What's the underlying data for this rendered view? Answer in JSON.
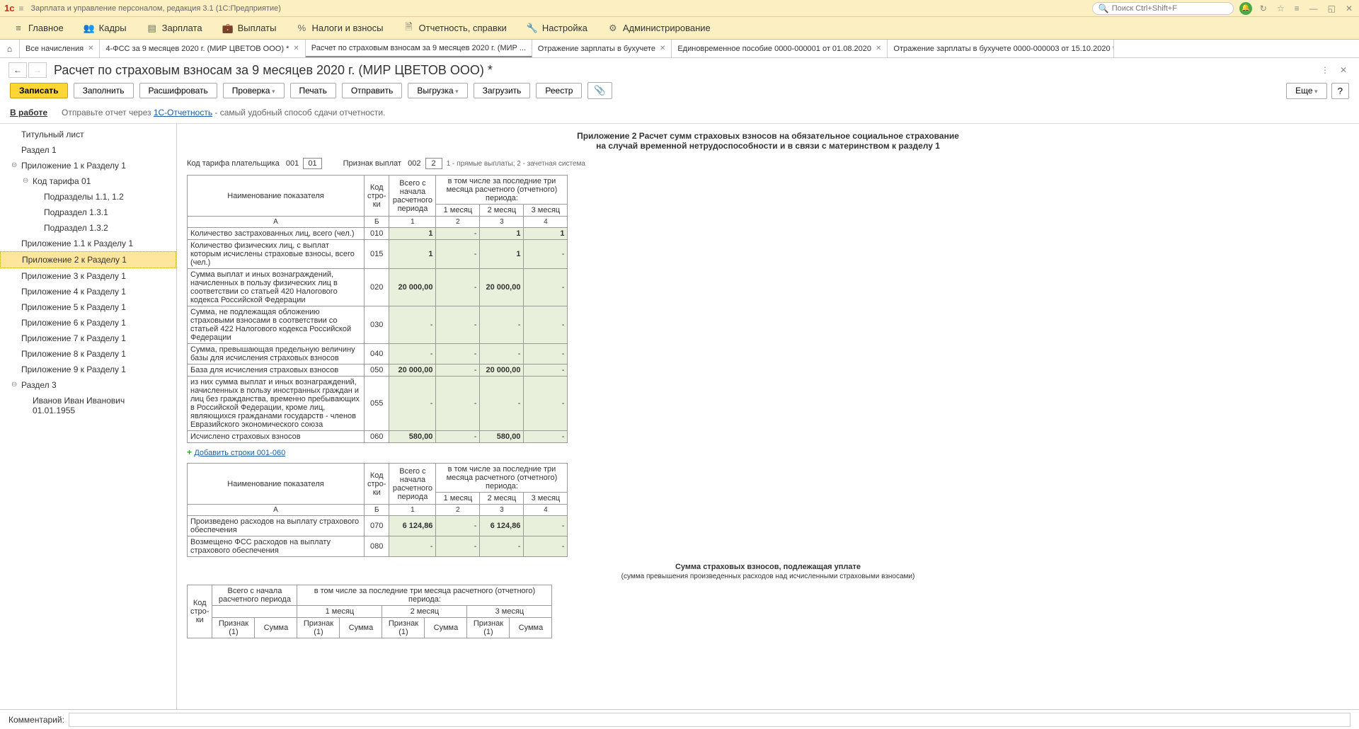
{
  "titlebar": {
    "app": "Зарплата и управление персоналом, редакция 3.1  (1С:Предприятие)",
    "search_placeholder": "Поиск Ctrl+Shift+F"
  },
  "mainmenu": [
    {
      "icon": "≡",
      "label": "Главное"
    },
    {
      "icon": "👥",
      "label": "Кадры"
    },
    {
      "icon": "▤",
      "label": "Зарплата"
    },
    {
      "icon": "💼",
      "label": "Выплаты"
    },
    {
      "icon": "%",
      "label": "Налоги и взносы"
    },
    {
      "icon": "🗎",
      "label": "Отчетность, справки"
    },
    {
      "icon": "🔧",
      "label": "Настройка"
    },
    {
      "icon": "⚙",
      "label": "Администрирование"
    }
  ],
  "tabs": [
    {
      "label": "Все начисления",
      "close": true
    },
    {
      "label": "4-ФСС за 9 месяцев 2020 г. (МИР ЦВЕТОВ ООО) *",
      "close": true
    },
    {
      "label": "Расчет по страховым взносам за 9 месяцев 2020 г. (МИР ...",
      "close": true,
      "active": true
    },
    {
      "label": "Отражение зарплаты в бухучете",
      "close": true
    },
    {
      "label": "Единовременное пособие 0000-000001 от 01.08.2020",
      "close": true
    },
    {
      "label": "Отражение зарплаты в бухучете 0000-000003 от 15.10.2020 *",
      "close": true
    }
  ],
  "page": {
    "title": "Расчет по страховым взносам за 9 месяцев 2020 г. (МИР ЦВЕТОВ ООО) *",
    "status_label": "В работе",
    "status_text": "Отправьте отчет через ",
    "status_link": "1С-Отчетность",
    "status_suffix": " - самый удобный способ сдачи отчетности."
  },
  "toolbar": {
    "save": "Записать",
    "fill": "Заполнить",
    "decode": "Расшифровать",
    "check": "Проверка",
    "print": "Печать",
    "send": "Отправить",
    "export": "Выгрузка",
    "load": "Загрузить",
    "registry": "Реестр",
    "more": "Еще"
  },
  "tree": [
    {
      "label": "Титульный лист",
      "level": 2
    },
    {
      "label": "Раздел 1",
      "level": 2
    },
    {
      "label": "Приложение 1 к Разделу 1",
      "level": 2,
      "toggle": "⊖"
    },
    {
      "label": "Код тарифа 01",
      "level": 3,
      "toggle": "⊖"
    },
    {
      "label": "Подразделы 1.1, 1.2",
      "level": 4
    },
    {
      "label": "Подраздел 1.3.1",
      "level": 4
    },
    {
      "label": "Подраздел 1.3.2",
      "level": 4
    },
    {
      "label": "Приложение 1.1 к Разделу 1",
      "level": 2
    },
    {
      "label": "Приложение 2 к Разделу 1",
      "level": 2,
      "selected": true
    },
    {
      "label": "Приложение 3 к Разделу 1",
      "level": 2
    },
    {
      "label": "Приложение 4 к Разделу 1",
      "level": 2
    },
    {
      "label": "Приложение 5 к Разделу 1",
      "level": 2
    },
    {
      "label": "Приложение 6 к Разделу 1",
      "level": 2
    },
    {
      "label": "Приложение 7 к Разделу 1",
      "level": 2
    },
    {
      "label": "Приложение 8 к Разделу 1",
      "level": 2
    },
    {
      "label": "Приложение 9 к Разделу 1",
      "level": 2
    },
    {
      "label": "Раздел 3",
      "level": 2,
      "toggle": "⊖"
    },
    {
      "label": "Иванов Иван Иванович 01.01.1955",
      "level": 3
    }
  ],
  "form": {
    "title_l1": "Приложение 2 Расчет сумм страховых взносов на обязательное социальное страхование",
    "title_l2": "на случай временной нетрудоспособности и в связи с материнством к разделу 1",
    "tariff_label": "Код тарифа плательщика",
    "tariff_code": "001",
    "tariff_val": "01",
    "sign_label": "Признак выплат",
    "sign_code": "002",
    "sign_val": "2",
    "sign_hint": "1 - прямые выплаты; 2 - зачетная система",
    "headers": {
      "name": "Наименование показателя",
      "code": "Код стро-ки",
      "total": "Всего с начала расчетного периода",
      "last3": "в том числе за последние три месяца расчетного (отчетного) периода:",
      "m1": "1 месяц",
      "m2": "2 месяц",
      "m3": "3 месяц",
      "A": "А",
      "B": "Б",
      "c1": "1",
      "c2": "2",
      "c3": "3",
      "c4": "4"
    },
    "rows1": [
      {
        "name": "Количество застрахованных лиц, всего (чел.)",
        "code": "010",
        "v": [
          "1",
          "-",
          "1",
          "1"
        ]
      },
      {
        "name": "Количество физических лиц, с выплат которым исчислены страховые взносы, всего (чел.)",
        "code": "015",
        "v": [
          "1",
          "-",
          "1",
          "-"
        ]
      },
      {
        "name": "Сумма выплат и иных вознаграждений, начисленных в пользу физических лиц в соответствии со статьей 420 Налогового кодекса Российской Федерации",
        "code": "020",
        "v": [
          "20 000,00",
          "-",
          "20 000,00",
          "-"
        ]
      },
      {
        "name": "Сумма, не подлежащая обложению страховыми взносами в соответствии со статьей 422 Налогового кодекса Российской Федерации",
        "code": "030",
        "v": [
          "-",
          "-",
          "-",
          "-"
        ]
      },
      {
        "name": "Сумма, превышающая предельную величину базы для исчисления страховых взносов",
        "code": "040",
        "v": [
          "-",
          "-",
          "-",
          "-"
        ]
      },
      {
        "name": "База для исчисления страховых взносов",
        "code": "050",
        "v": [
          "20 000,00",
          "-",
          "20 000,00",
          "-"
        ]
      },
      {
        "name": "из них сумма выплат и иных вознаграждений, начисленных в пользу иностранных граждан и лиц без гражданства, временно пребывающих в Российской Федерации, кроме лиц, являющихся гражданами государств - членов Евразийского экономического союза",
        "code": "055",
        "v": [
          "-",
          "-",
          "-",
          "-"
        ]
      },
      {
        "name": "Исчислено страховых взносов",
        "code": "060",
        "v": [
          "580,00",
          "-",
          "580,00",
          "-"
        ]
      }
    ],
    "add_link": "Добавить строки 001-060",
    "rows2": [
      {
        "name": "Произведено расходов на выплату страхового обеспечения",
        "code": "070",
        "v": [
          "6 124,86",
          "-",
          "6 124,86",
          "-"
        ]
      },
      {
        "name": "Возмещено ФСС расходов на выплату страхового обеспечения",
        "code": "080",
        "v": [
          "-",
          "-",
          "-",
          "-"
        ]
      }
    ],
    "section2_title": "Сумма страховых взносов, подлежащая уплате",
    "section2_sub": "(сумма превышения произведенных расходов над исчисленными страховыми взносами)",
    "t2": {
      "total_label": "Всего с начала расчетного периода",
      "last3_label": "в том числе за последние три месяца расчетного (отчетного) периода:",
      "m1": "1 месяц",
      "m2": "2 месяц",
      "m3": "3 месяц",
      "sign": "Признак (1)",
      "sum": "Сумма"
    }
  },
  "footer": {
    "label": "Комментарий:"
  }
}
